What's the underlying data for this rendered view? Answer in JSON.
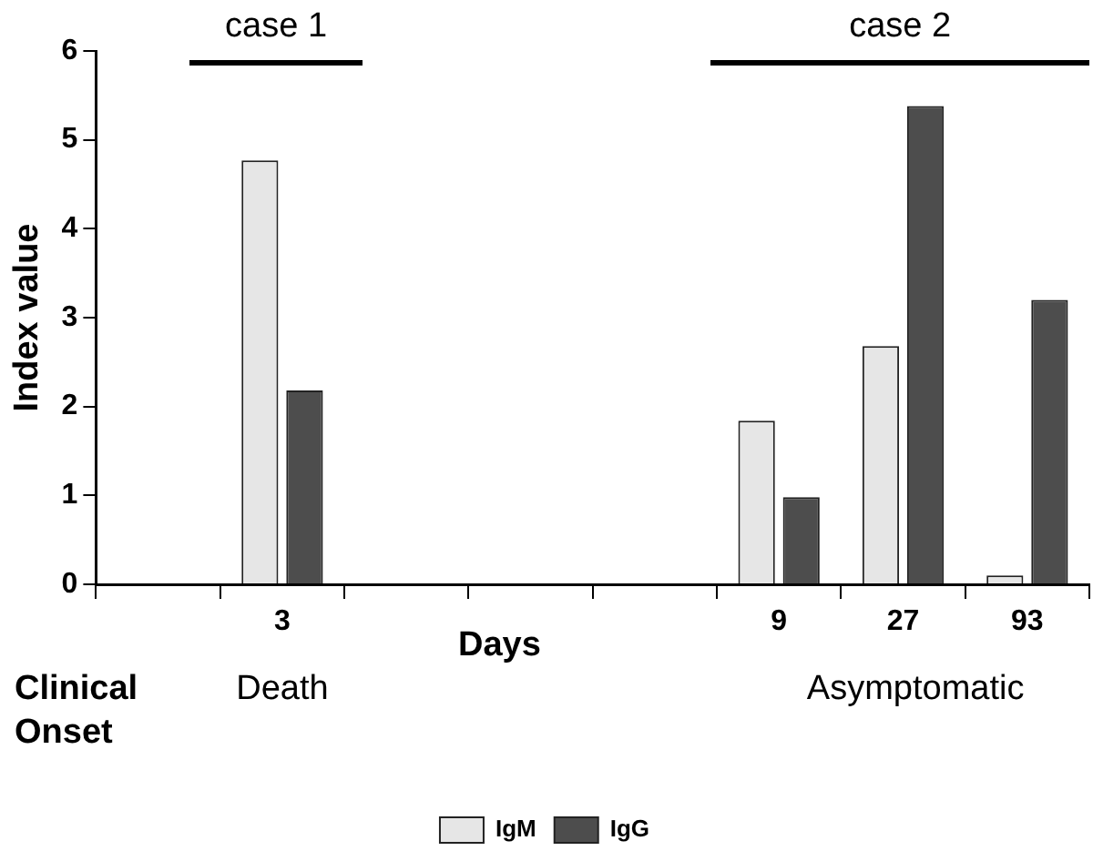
{
  "chart_data": {
    "type": "bar",
    "ylabel": "Index value",
    "xlabel": "Days",
    "categories": [
      null,
      "3",
      null,
      null,
      null,
      "9",
      "27",
      "93"
    ],
    "series": [
      {
        "name": "IgM",
        "color": "#e6e6e6",
        "values": [
          null,
          4.77,
          null,
          null,
          null,
          1.84,
          2.68,
          0.1
        ]
      },
      {
        "name": "IgG",
        "color": "#4d4d4d",
        "values": [
          null,
          2.18,
          null,
          null,
          null,
          0.98,
          5.38,
          3.2
        ]
      }
    ],
    "ylim": [
      0,
      6
    ],
    "yticks": [
      0,
      1,
      2,
      3,
      4,
      5,
      6
    ],
    "grid": false,
    "legend": "bottom",
    "annotations": [
      "case 1",
      "case 2",
      "Clinical Onset",
      "Death",
      "Asymptomatic"
    ]
  }
}
